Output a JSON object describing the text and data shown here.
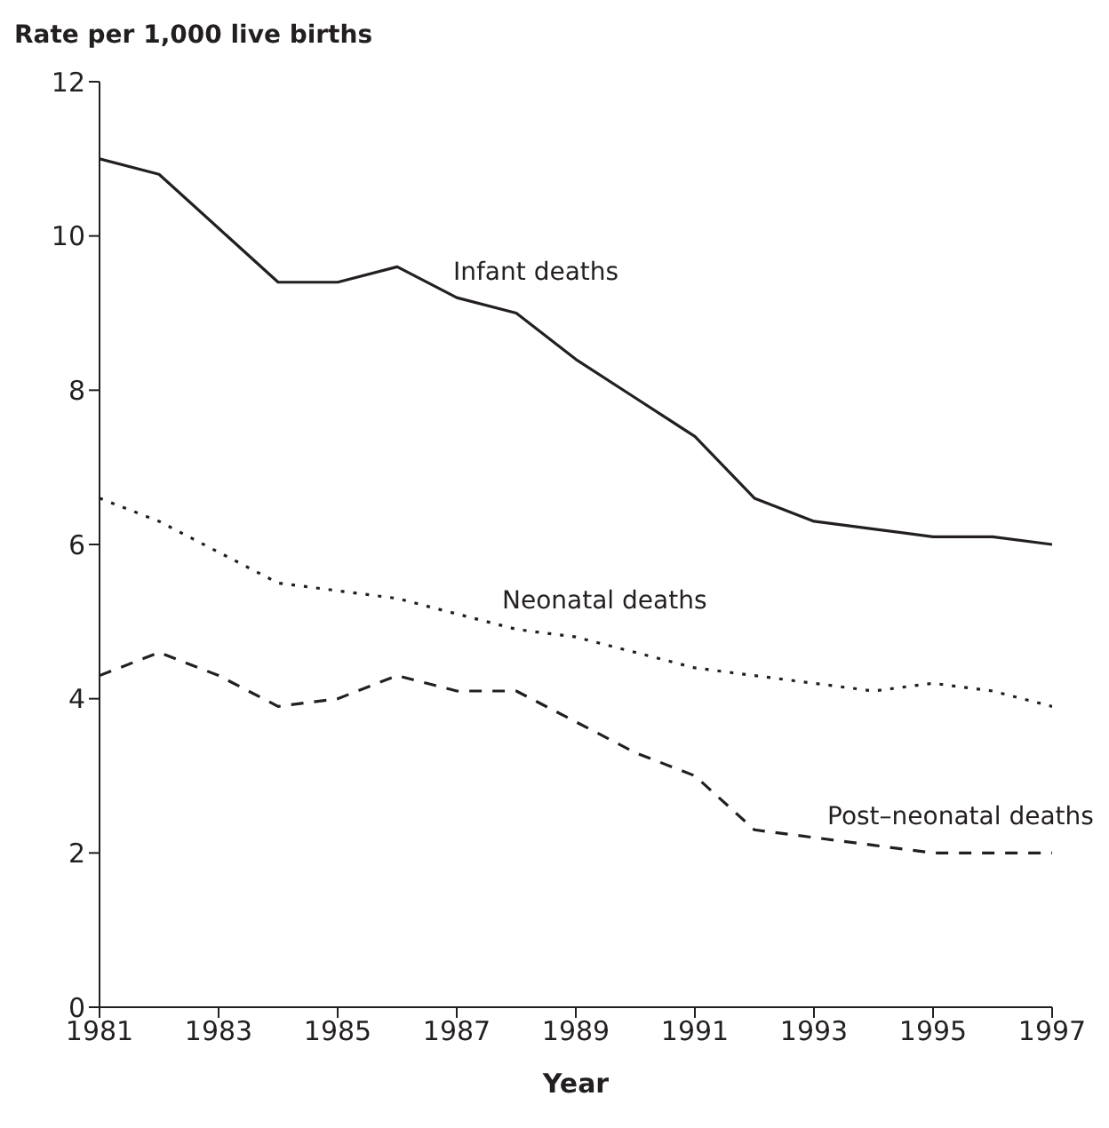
{
  "chart_data": {
    "type": "line",
    "ylabel": "Rate per 1,000 live births",
    "xlabel": "Year",
    "x": [
      1981,
      1982,
      1983,
      1984,
      1985,
      1986,
      1987,
      1988,
      1989,
      1990,
      1991,
      1992,
      1993,
      1994,
      1995,
      1996,
      1997
    ],
    "series": [
      {
        "name": "Infant deaths",
        "color": "#231f20",
        "line_style": "solid",
        "values": [
          11,
          10.8,
          10.1,
          9.4,
          9.4,
          9.6,
          9.2,
          9.0,
          8.4,
          7.9,
          7.4,
          6.6,
          6.3,
          6.2,
          6.1,
          6.1,
          6.0
        ]
      },
      {
        "name": "Neonatal deaths",
        "color": "#231f20",
        "line_style": "dotted",
        "values": [
          6.6,
          6.3,
          5.9,
          5.5,
          5.4,
          5.3,
          5.1,
          4.9,
          4.8,
          4.6,
          4.4,
          4.3,
          4.2,
          4.1,
          4.2,
          4.1,
          3.9
        ]
      },
      {
        "name": "Post–neonatal deaths",
        "color": "#231f20",
        "line_style": "dashed",
        "values": [
          4.3,
          4.6,
          4.3,
          3.9,
          4.0,
          4.3,
          4.1,
          4.1,
          3.7,
          3.3,
          3.0,
          2.3,
          2.2,
          2.1,
          2.0,
          2.0,
          2.0
        ]
      }
    ],
    "xlim": [
      1981,
      1997
    ],
    "xticks": [
      1981,
      1983,
      1985,
      1987,
      1989,
      1991,
      1993,
      1995,
      1997
    ],
    "ylim": [
      0,
      12
    ],
    "yticks": [
      0,
      2,
      4,
      6,
      8,
      10,
      12
    ],
    "grid": false,
    "legend": false,
    "marker": "none"
  }
}
